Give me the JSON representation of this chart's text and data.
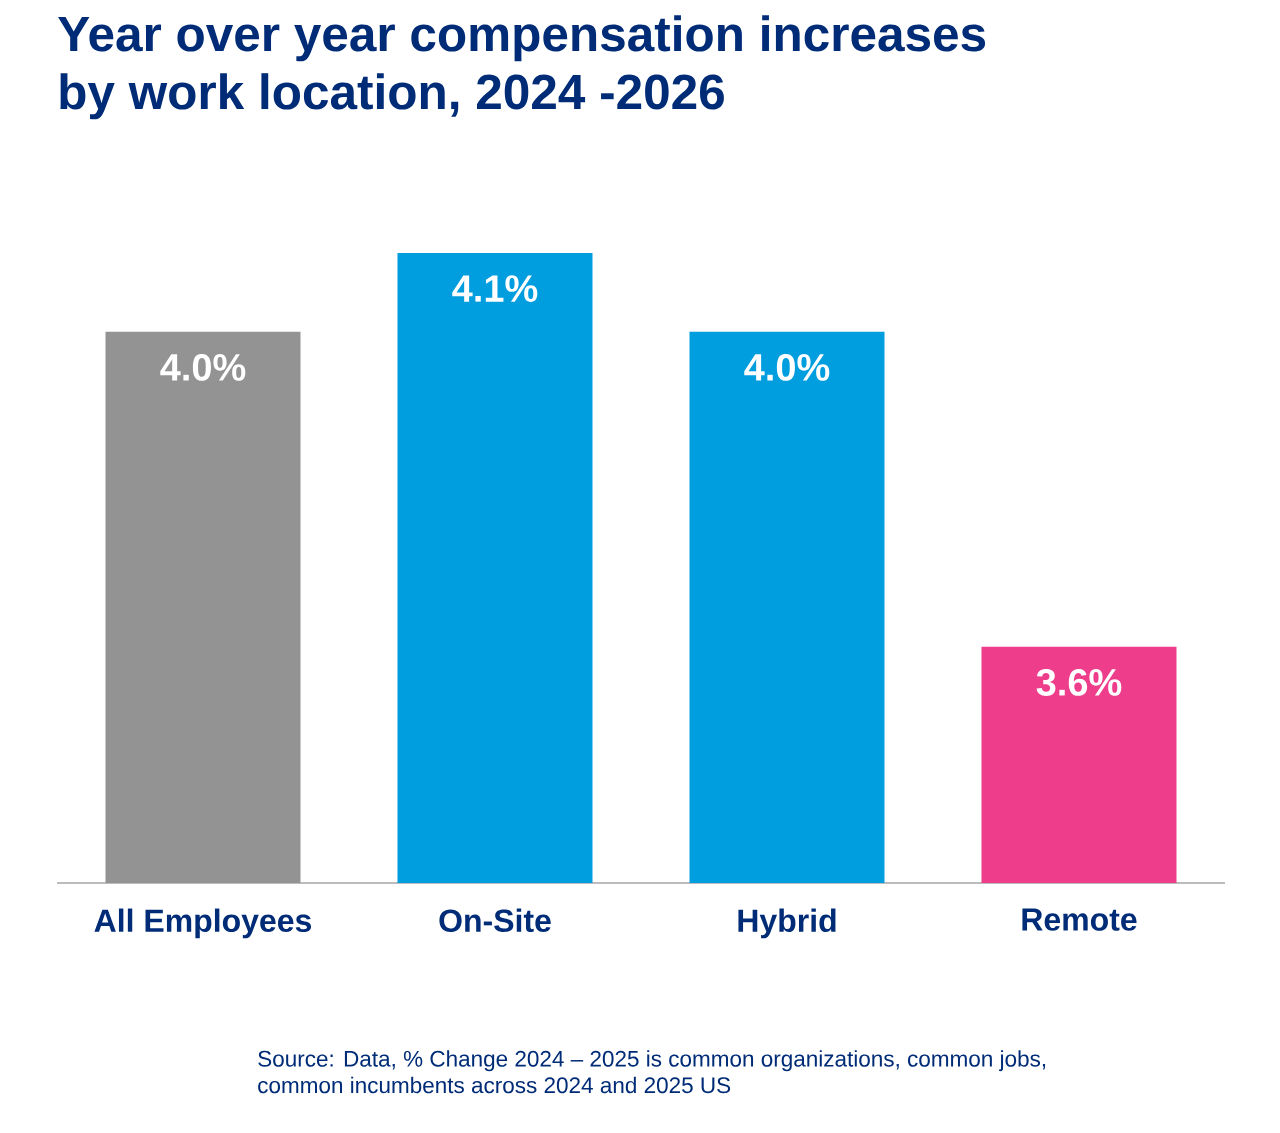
{
  "chart_data": {
    "type": "bar",
    "title": "Year over year compensation increases by work location, 2024 -2026",
    "categories": [
      "All Employees",
      "On-Site",
      "Hybrid",
      "Remote"
    ],
    "values": [
      4.0,
      4.1,
      4.0,
      3.6
    ],
    "colors": [
      "#939393",
      "#009DDF",
      "#009DDF",
      "#EE3D8B"
    ],
    "value_labels": [
      "4.0%",
      "4.1%",
      "4.0%",
      "3.6%"
    ],
    "ylim": [
      3.3,
      4.1
    ],
    "tick_labels": "x",
    "annotations": [
      "Source: Data, % Change 2024 – 2025 is common organizations, common jobs, common incumbents across 2024 and 2025 US"
    ]
  }
}
